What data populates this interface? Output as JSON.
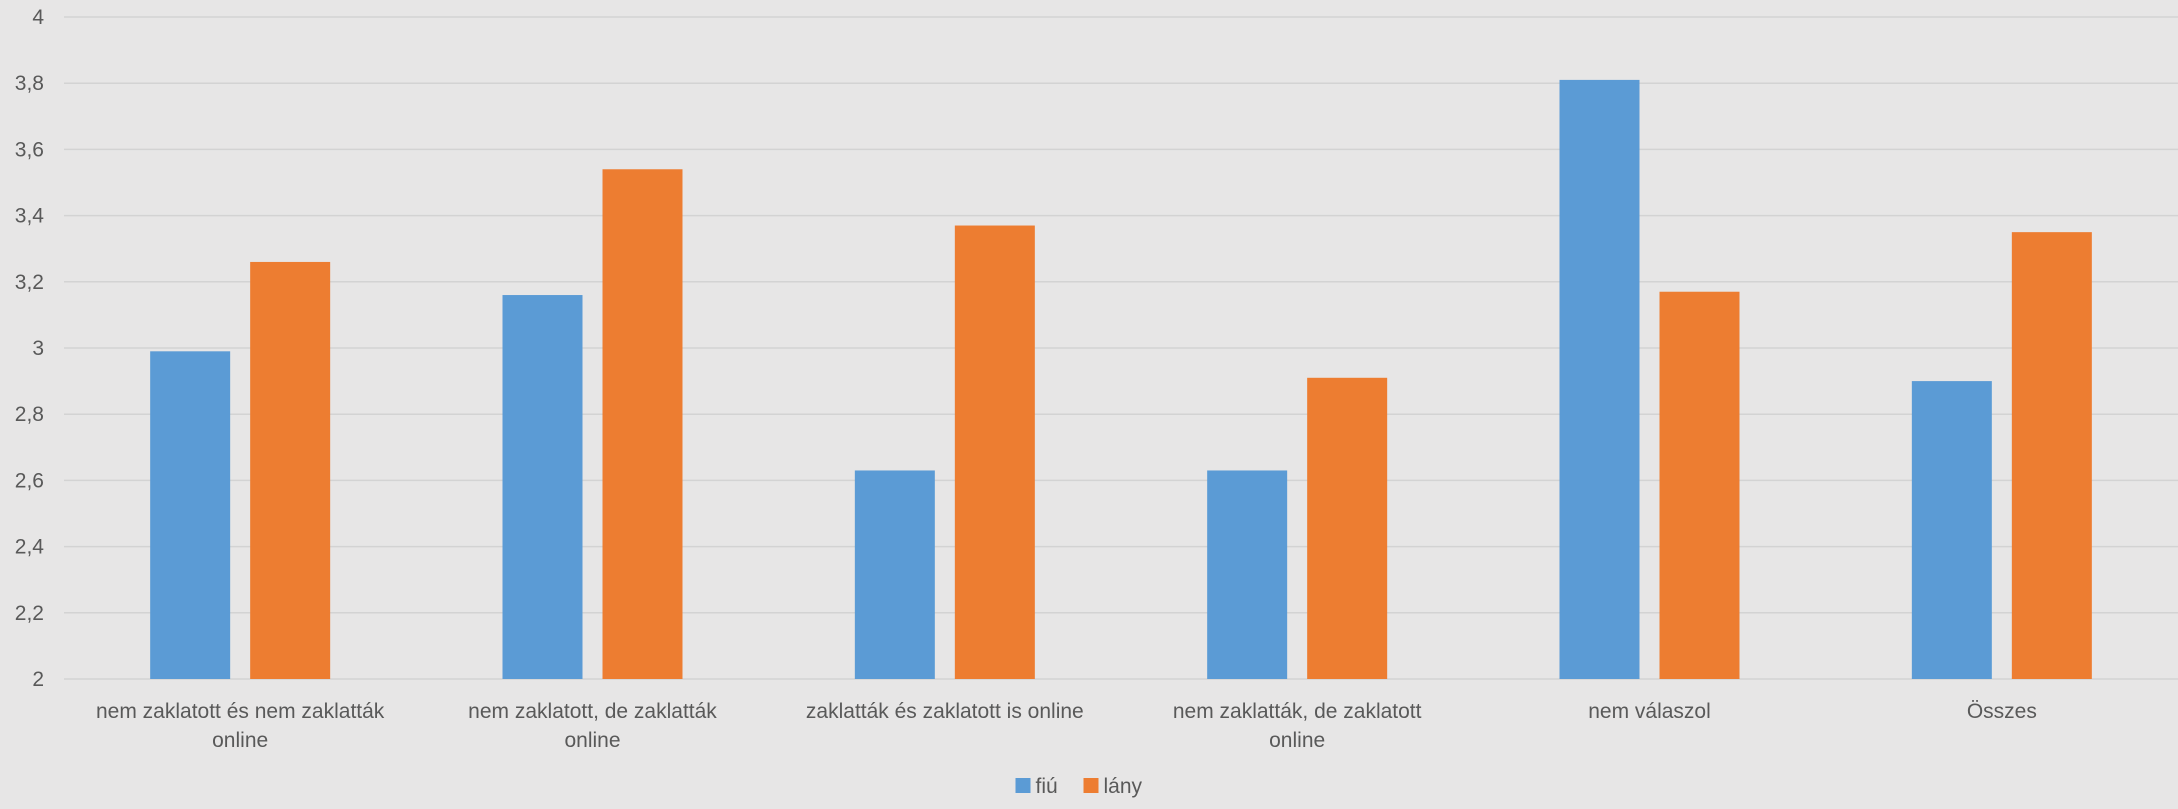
{
  "chart_data": {
    "type": "bar",
    "title": "",
    "xlabel": "",
    "ylabel": "",
    "ylim": [
      2,
      4
    ],
    "ytick_step": 0.2,
    "grid": true,
    "legend_position": "bottom-center",
    "categories": [
      "nem zaklatott és nem zaklatták online",
      "nem zaklatott, de zaklatták online",
      "zaklatták és zaklatott is online",
      "nem zaklatták, de zaklatott online",
      "nem válaszol",
      "Összes"
    ],
    "series": [
      {
        "name": "fiú",
        "color": "#5B9BD5",
        "values": [
          2.99,
          3.16,
          2.63,
          2.63,
          3.81,
          2.9
        ]
      },
      {
        "name": "lány",
        "color": "#ED7D31",
        "values": [
          3.26,
          3.54,
          3.37,
          2.91,
          3.17,
          3.35
        ]
      }
    ]
  },
  "colors": {
    "background": "#E7E6E6",
    "gridline": "#D3D3D3",
    "text": "#595959"
  }
}
